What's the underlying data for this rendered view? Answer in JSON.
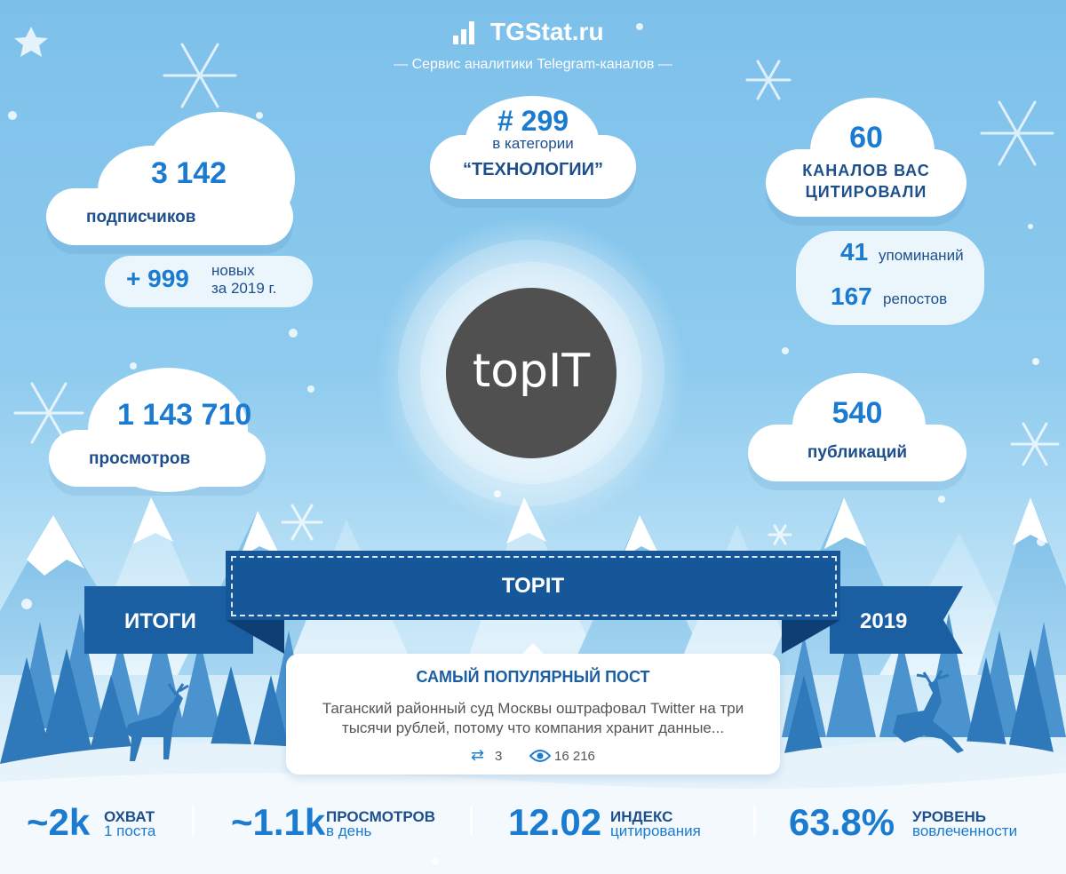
{
  "header": {
    "logo_text": "TGStat.ru",
    "tagline": "— Сервис аналитики Telegram-каналов —"
  },
  "subscribers": {
    "value": "3 142",
    "label": "подписчиков"
  },
  "new_subs": {
    "value": "+ 999",
    "label_line1": "новых",
    "label_line2": "за 2019 г."
  },
  "rank": {
    "value": "# 299",
    "label_line1": "в категории",
    "label_line2": "“ТЕХНОЛОГИИ”"
  },
  "citations": {
    "value": "60",
    "label_line1": "КАНАЛОВ ВАС",
    "label_line2": "ЦИТИРОВАЛИ"
  },
  "mentions": {
    "value": "41",
    "label": "упоминаний"
  },
  "reposts": {
    "value": "167",
    "label": "репостов"
  },
  "views": {
    "value": "1 143 710",
    "label": "просмотров"
  },
  "publications": {
    "value": "540",
    "label": "публикаций"
  },
  "avatar": {
    "text": "topIT"
  },
  "banner": {
    "channel": "TOPIT",
    "left": "ИТОГИ",
    "right": "2019"
  },
  "post": {
    "title": "САМЫЙ ПОПУЛЯРНЫЙ ПОСТ",
    "text_line1": "Таганский районный суд Москвы оштрафовал Twitter на три",
    "text_line2": "тысячи рублей, потому что компания хранит данные...",
    "reposts": "3",
    "views": "16 216"
  },
  "bottom": [
    {
      "value": "~2k",
      "label": "ОХВАТ",
      "sub": "1 поста"
    },
    {
      "value": "~1.1k",
      "label": "ПРОСМОТРОВ",
      "sub": "в день"
    },
    {
      "value": "12.02",
      "label": "ИНДЕКС",
      "sub": "цитирования"
    },
    {
      "value": "63.8%",
      "label": "УРОВЕНЬ",
      "sub": "вовлеченности"
    }
  ],
  "colors": {
    "accent": "#1b7bd0",
    "navy": "#16579a",
    "sky": "#7cc0ea",
    "avatar": "#505050"
  }
}
